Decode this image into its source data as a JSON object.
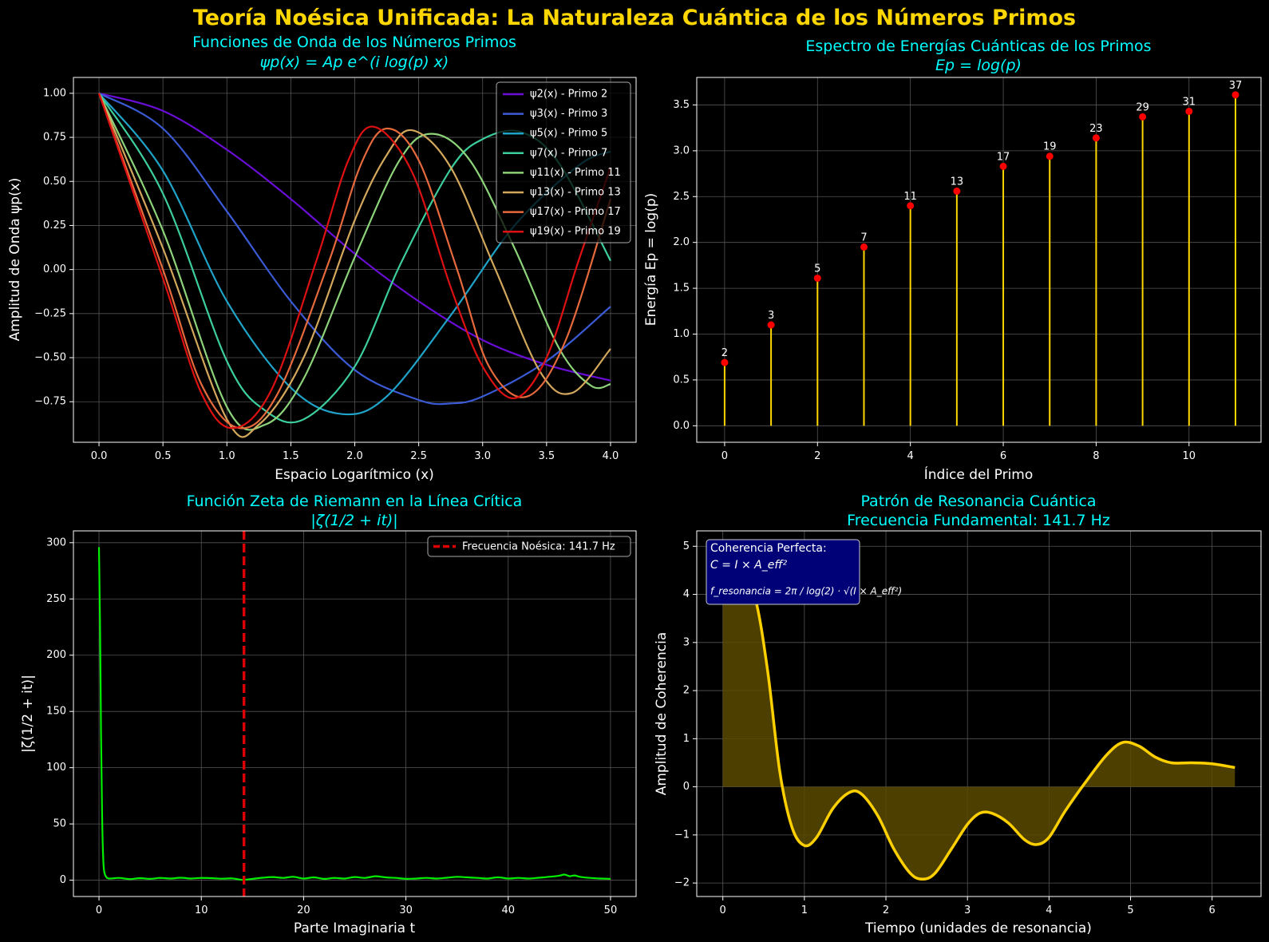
{
  "suptitle": "Teoría Noésica Unificada: La Naturaleza Cuántica de los Números Primos",
  "chart_data": [
    {
      "id": "wavefunctions",
      "type": "line",
      "title_lines": [
        "Funciones de Onda de los Números Primos",
        "ψp(x) = Ap e^(i log(p) x)"
      ],
      "xlabel": "Espacio Logarítmico (x)",
      "ylabel": "Amplitud de Onda ψp(x)",
      "xlim": [
        -0.2,
        4.2
      ],
      "ylim": [
        -0.98,
        1.09
      ],
      "xticks": [
        0.0,
        0.5,
        1.0,
        1.5,
        2.0,
        2.5,
        3.0,
        3.5,
        4.0
      ],
      "xtick_labels": [
        "0.0",
        "0.5",
        "1.0",
        "1.5",
        "2.0",
        "2.5",
        "3.0",
        "3.5",
        "4.0"
      ],
      "yticks": [
        -0.75,
        -0.5,
        -0.25,
        0.0,
        0.25,
        0.5,
        0.75,
        1.0
      ],
      "ytick_labels": [
        "−0.75",
        "−0.50",
        "−0.25",
        "0.00",
        "0.25",
        "0.50",
        "0.75",
        "1.00"
      ],
      "grid": true,
      "legend_position": "top-right",
      "series": [
        {
          "name": "ψ2(x) - Primo 2",
          "color": "#6A0DD6",
          "points": [
            [
              0,
              1
            ],
            [
              0.5,
              0.9
            ],
            [
              1.0,
              0.68
            ],
            [
              1.5,
              0.4
            ],
            [
              2.0,
              0.09
            ],
            [
              2.5,
              -0.18
            ],
            [
              3.0,
              -0.4
            ],
            [
              3.5,
              -0.54
            ],
            [
              4.0,
              -0.63
            ]
          ]
        },
        {
          "name": "ψ3(x) - Primo 3",
          "color": "#3B5BD6",
          "points": [
            [
              0,
              1
            ],
            [
              0.5,
              0.8
            ],
            [
              1.0,
              0.33
            ],
            [
              1.5,
              -0.18
            ],
            [
              2.0,
              -0.57
            ],
            [
              2.5,
              -0.74
            ],
            [
              2.75,
              -0.76
            ],
            [
              3.0,
              -0.72
            ],
            [
              3.5,
              -0.52
            ],
            [
              4.0,
              -0.21
            ]
          ]
        },
        {
          "name": "ψ5(x) - Primo 5",
          "color": "#1FA3C8",
          "points": [
            [
              0,
              1
            ],
            [
              0.5,
              0.56
            ],
            [
              1.0,
              -0.18
            ],
            [
              1.5,
              -0.67
            ],
            [
              1.9,
              -0.82
            ],
            [
              2.25,
              -0.72
            ],
            [
              2.75,
              -0.26
            ],
            [
              3.25,
              0.25
            ],
            [
              3.75,
              0.59
            ],
            [
              4.0,
              0.67
            ]
          ]
        },
        {
          "name": "ψ7(x) - Primo 7",
          "color": "#3CCF9C",
          "points": [
            [
              0,
              1
            ],
            [
              0.5,
              0.43
            ],
            [
              1.0,
              -0.52
            ],
            [
              1.3,
              -0.8
            ],
            [
              1.6,
              -0.85
            ],
            [
              2.0,
              -0.55
            ],
            [
              2.35,
              0.02
            ],
            [
              2.75,
              0.57
            ],
            [
              3.0,
              0.74
            ],
            [
              3.3,
              0.78
            ],
            [
              3.6,
              0.6
            ],
            [
              4.0,
              0.05
            ]
          ]
        },
        {
          "name": "ψ11(x) - Primo 11",
          "color": "#8DD37A",
          "points": [
            [
              0,
              1
            ],
            [
              0.5,
              0.22
            ],
            [
              1.0,
              -0.78
            ],
            [
              1.3,
              -0.88
            ],
            [
              1.6,
              -0.62
            ],
            [
              2.0,
              0.07
            ],
            [
              2.35,
              0.62
            ],
            [
              2.6,
              0.77
            ],
            [
              2.9,
              0.62
            ],
            [
              3.25,
              0.12
            ],
            [
              3.6,
              -0.45
            ],
            [
              3.85,
              -0.66
            ],
            [
              4.0,
              -0.65
            ]
          ]
        },
        {
          "name": "ψ13(x) - Primo 13",
          "color": "#D4A85C",
          "points": [
            [
              0,
              1
            ],
            [
              0.5,
              0.12
            ],
            [
              1.0,
              -0.85
            ],
            [
              1.25,
              -0.88
            ],
            [
              1.6,
              -0.5
            ],
            [
              2.0,
              0.28
            ],
            [
              2.25,
              0.65
            ],
            [
              2.45,
              0.79
            ],
            [
              2.75,
              0.58
            ],
            [
              3.1,
              0.0
            ],
            [
              3.45,
              -0.58
            ],
            [
              3.7,
              -0.7
            ],
            [
              4.0,
              -0.45
            ]
          ]
        },
        {
          "name": "ψ17(x) - Primo 17",
          "color": "#E66A3C",
          "points": [
            [
              0,
              1
            ],
            [
              0.5,
              0.0
            ],
            [
              0.8,
              -0.65
            ],
            [
              1.1,
              -0.9
            ],
            [
              1.4,
              -0.7
            ],
            [
              1.8,
              0.05
            ],
            [
              2.05,
              0.6
            ],
            [
              2.25,
              0.8
            ],
            [
              2.5,
              0.62
            ],
            [
              2.8,
              0.0
            ],
            [
              3.05,
              -0.55
            ],
            [
              3.35,
              -0.72
            ],
            [
              3.65,
              -0.4
            ],
            [
              4.0,
              0.4
            ]
          ]
        },
        {
          "name": "ψ19(x) - Primo 19",
          "color": "#DD1111",
          "points": [
            [
              0,
              1
            ],
            [
              0.5,
              -0.05
            ],
            [
              0.8,
              -0.7
            ],
            [
              1.05,
              -0.9
            ],
            [
              1.35,
              -0.68
            ],
            [
              1.7,
              0.05
            ],
            [
              1.95,
              0.62
            ],
            [
              2.15,
              0.81
            ],
            [
              2.45,
              0.55
            ],
            [
              2.75,
              -0.1
            ],
            [
              3.0,
              -0.55
            ],
            [
              3.25,
              -0.73
            ],
            [
              3.5,
              -0.5
            ],
            [
              3.75,
              0.05
            ],
            [
              4.0,
              0.58
            ]
          ]
        }
      ]
    },
    {
      "id": "energies",
      "type": "bar",
      "title_lines": [
        "Espectro de Energías Cuánticas de los Primos",
        "Ep = log(p)"
      ],
      "xlabel": "Índice del Primo",
      "ylabel": "Energía Ep = log(p)",
      "xlim": [
        -0.6,
        11.55
      ],
      "ylim": [
        -0.18,
        3.8
      ],
      "xticks": [
        0,
        2,
        4,
        6,
        8,
        10
      ],
      "xtick_labels": [
        "0",
        "2",
        "4",
        "6",
        "8",
        "10"
      ],
      "yticks": [
        0.0,
        0.5,
        1.0,
        1.5,
        2.0,
        2.5,
        3.0,
        3.5
      ],
      "ytick_labels": [
        "0.0",
        "0.5",
        "1.0",
        "1.5",
        "2.0",
        "2.5",
        "3.0",
        "3.5"
      ],
      "grid": true,
      "categories": [
        0,
        1,
        2,
        3,
        4,
        5,
        6,
        7,
        8,
        9,
        10,
        11
      ],
      "values": [
        0.69,
        1.1,
        1.61,
        1.95,
        2.4,
        2.56,
        2.83,
        2.94,
        3.14,
        3.37,
        3.43,
        3.61
      ],
      "labels": [
        "2",
        "3",
        "5",
        "7",
        "11",
        "13",
        "17",
        "19",
        "23",
        "29",
        "31",
        "37"
      ],
      "stem_color": "#FFD700",
      "marker_color": "#FF0000"
    },
    {
      "id": "zeta",
      "type": "line",
      "title_lines": [
        "Función Zeta de Riemann en la Línea Crítica",
        "|ζ(1/2 + it)|"
      ],
      "xlabel": "Parte Imaginaria t",
      "ylabel": "|ζ(1/2 + it)|",
      "xlim": [
        -2.5,
        52.5
      ],
      "ylim": [
        -14.5,
        310.5
      ],
      "xticks": [
        0,
        10,
        20,
        30,
        40,
        50
      ],
      "xtick_labels": [
        "0",
        "10",
        "20",
        "30",
        "40",
        "50"
      ],
      "yticks": [
        0,
        50,
        100,
        150,
        200,
        250,
        300
      ],
      "ytick_labels": [
        "0",
        "50",
        "100",
        "150",
        "200",
        "250",
        "300"
      ],
      "grid": true,
      "legend_position": "top-right",
      "series": [
        {
          "name": "|ζ(1/2 + it)|",
          "color": "#00EE00",
          "points": [
            [
              0,
              296
            ],
            [
              0.1,
              230
            ],
            [
              0.2,
              130
            ],
            [
              0.3,
              60
            ],
            [
              0.4,
              22
            ],
            [
              0.5,
              8
            ],
            [
              0.7,
              3
            ],
            [
              1,
              1.5
            ],
            [
              2,
              2
            ],
            [
              3,
              1
            ],
            [
              4,
              1.8
            ],
            [
              5,
              1.2
            ],
            [
              6,
              2
            ],
            [
              7,
              1.5
            ],
            [
              8,
              2.2
            ],
            [
              9,
              1.5
            ],
            [
              10,
              2
            ],
            [
              11,
              1.8
            ],
            [
              12,
              1.3
            ],
            [
              13,
              1.6
            ],
            [
              14,
              0.3
            ],
            [
              15,
              1.2
            ],
            [
              16,
              2.2
            ],
            [
              17,
              2.8
            ],
            [
              18,
              2.0
            ],
            [
              19,
              3.0
            ],
            [
              20,
              1.5
            ],
            [
              21,
              2.5
            ],
            [
              22,
              1.2
            ],
            [
              23,
              2.0
            ],
            [
              24,
              1.5
            ],
            [
              25,
              2.8
            ],
            [
              26,
              2.0
            ],
            [
              27,
              3.5
            ],
            [
              28,
              2.5
            ],
            [
              29,
              2.0
            ],
            [
              30,
              1.2
            ],
            [
              31,
              1.5
            ],
            [
              32,
              2.0
            ],
            [
              33,
              1.5
            ],
            [
              34,
              2.2
            ],
            [
              35,
              3.0
            ],
            [
              36,
              2.5
            ],
            [
              37,
              2.0
            ],
            [
              38,
              1.5
            ],
            [
              39,
              2.5
            ],
            [
              40,
              1.5
            ],
            [
              41,
              2.0
            ],
            [
              42,
              1.5
            ],
            [
              43,
              2.2
            ],
            [
              44,
              3.0
            ],
            [
              45,
              4.0
            ],
            [
              45.5,
              5.0
            ],
            [
              46,
              3.5
            ],
            [
              46.5,
              4.2
            ],
            [
              47,
              3.0
            ],
            [
              48,
              2.0
            ],
            [
              49,
              1.5
            ],
            [
              50,
              1.2
            ]
          ]
        }
      ],
      "vline": {
        "x": 14.17,
        "color": "#DD0000",
        "label": "Frecuencia Noésica: 141.7 Hz"
      }
    },
    {
      "id": "resonance",
      "type": "area",
      "title_lines": [
        "Patrón de Resonancia Cuántica",
        "Frecuencia Fundamental: 141.7 Hz"
      ],
      "xlabel": "Tiempo (unidades de resonancia)",
      "ylabel": "Amplitud de Coherencia",
      "xlim": [
        -0.32,
        6.6
      ],
      "ylim": [
        -2.28,
        5.32
      ],
      "xticks": [
        0,
        1,
        2,
        3,
        4,
        5,
        6
      ],
      "xtick_labels": [
        "0",
        "1",
        "2",
        "3",
        "4",
        "5",
        "6"
      ],
      "yticks": [
        -2,
        -1,
        0,
        1,
        2,
        3,
        4,
        5
      ],
      "ytick_labels": [
        "−2",
        "−1",
        "0",
        "1",
        "2",
        "3",
        "4",
        "5"
      ],
      "grid": true,
      "series": [
        {
          "name": "",
          "color": "#FFD000",
          "fill": "#5A4A00",
          "points": [
            [
              0,
              4.85
            ],
            [
              0.2,
              4.75
            ],
            [
              0.4,
              3.9
            ],
            [
              0.55,
              2.4
            ],
            [
              0.7,
              0.3
            ],
            [
              0.85,
              -0.85
            ],
            [
              1.0,
              -1.22
            ],
            [
              1.15,
              -1.05
            ],
            [
              1.35,
              -0.45
            ],
            [
              1.55,
              -0.12
            ],
            [
              1.7,
              -0.15
            ],
            [
              1.9,
              -0.6
            ],
            [
              2.1,
              -1.3
            ],
            [
              2.3,
              -1.8
            ],
            [
              2.45,
              -1.92
            ],
            [
              2.6,
              -1.8
            ],
            [
              2.8,
              -1.3
            ],
            [
              3.0,
              -0.78
            ],
            [
              3.15,
              -0.55
            ],
            [
              3.3,
              -0.55
            ],
            [
              3.5,
              -0.75
            ],
            [
              3.7,
              -1.1
            ],
            [
              3.85,
              -1.2
            ],
            [
              4.0,
              -1.05
            ],
            [
              4.2,
              -0.5
            ],
            [
              4.45,
              0.1
            ],
            [
              4.7,
              0.65
            ],
            [
              4.9,
              0.92
            ],
            [
              5.1,
              0.85
            ],
            [
              5.3,
              0.62
            ],
            [
              5.5,
              0.5
            ],
            [
              5.75,
              0.5
            ],
            [
              6.0,
              0.48
            ],
            [
              6.28,
              0.4
            ]
          ]
        }
      ],
      "info_box": {
        "line1": "Coherencia Perfecta:",
        "line2": "C = I × A_eff²",
        "line3": "f_resonancia = 2π / log(2) · √(I × A_eff²)"
      }
    }
  ]
}
